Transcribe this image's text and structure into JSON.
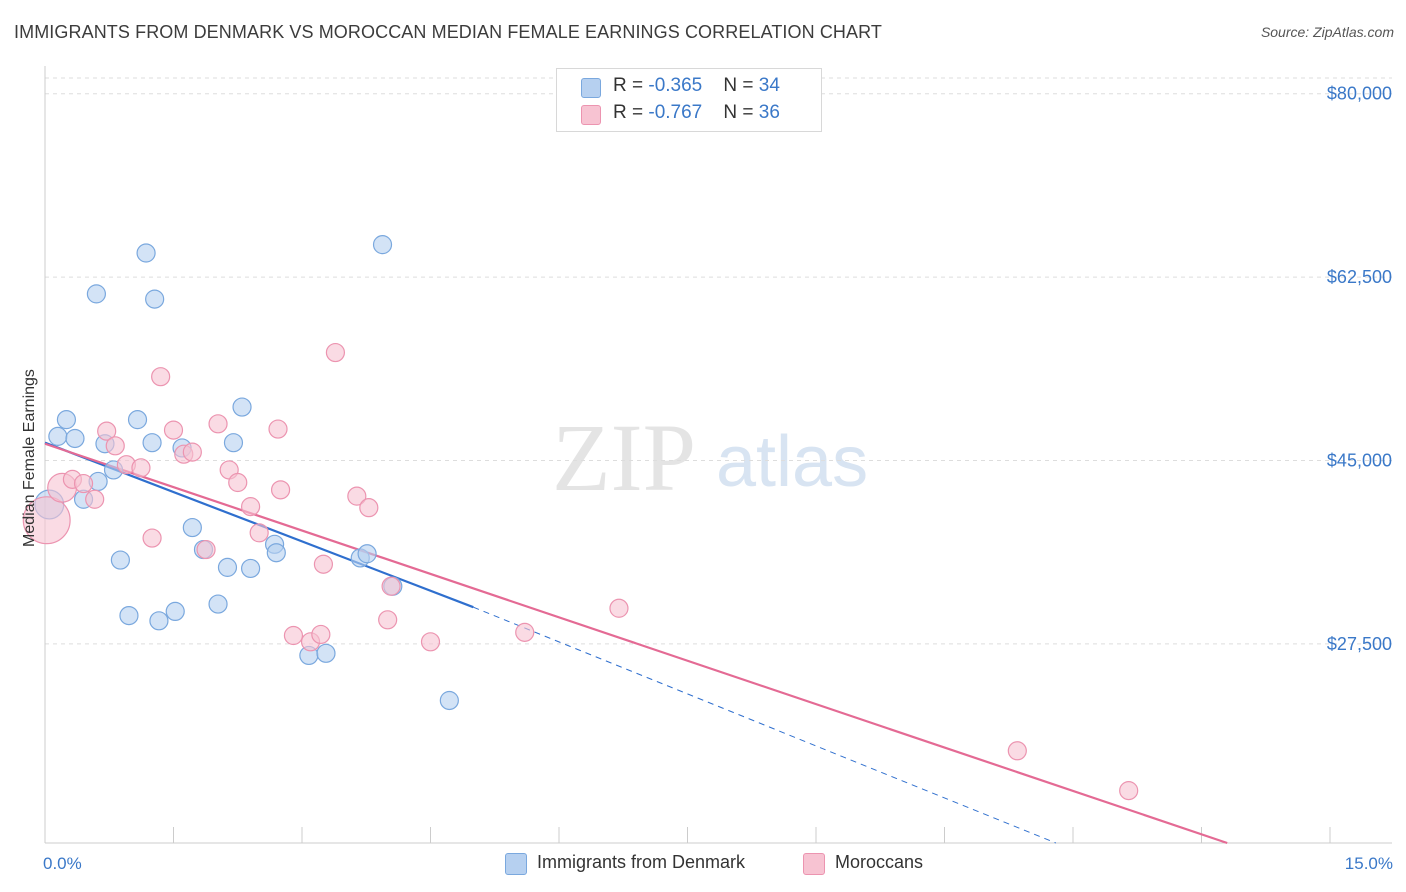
{
  "header": {
    "title": "IMMIGRANTS FROM DENMARK VS MOROCCAN MEDIAN FEMALE EARNINGS CORRELATION CHART",
    "source": "Source: ZipAtlas.com"
  },
  "legend": {
    "rows": [
      {
        "r_label": "R = ",
        "r_value": "-0.365",
        "n_label": "N = ",
        "n_value": "34"
      },
      {
        "r_label": "R = ",
        "r_value": "-0.767",
        "n_label": "N = ",
        "n_value": "36"
      }
    ]
  },
  "bottom_legend": {
    "series1": "Immigrants from Denmark",
    "series2": "Moroccans"
  },
  "watermark": {
    "zip": "ZIP",
    "atlas": "atlas"
  },
  "colors": {
    "blue_fill": "#b6d0f0",
    "blue_stroke": "#7aa8de",
    "blue_line": "#2f6fce",
    "pink_fill": "#f7c3d2",
    "pink_stroke": "#ec94b0",
    "pink_line": "#e46a94",
    "grid": "#dddddd",
    "accent_text": "#3a78c8"
  },
  "chart_data": {
    "type": "scatter",
    "title": "IMMIGRANTS FROM DENMARK VS MOROCCAN MEDIAN FEMALE EARNINGS CORRELATION CHART",
    "xlabel": "",
    "ylabel": "Median Female Earnings",
    "xlim": [
      0,
      15
    ],
    "ylim": [
      8500,
      81500
    ],
    "x_tick_labels": [
      "0.0%",
      "15.0%"
    ],
    "y_ticks": [
      27500,
      45000,
      62500,
      80000
    ],
    "y_tick_labels": [
      "$27,500",
      "$45,000",
      "$62,500",
      "$80,000"
    ],
    "grid": true,
    "legend_placement": "top-center",
    "series": [
      {
        "name": "Immigrants from Denmark",
        "r": -0.365,
        "n": 34,
        "points": [
          [
            0.05,
            40800,
            1.6
          ],
          [
            0.15,
            47300,
            1
          ],
          [
            0.25,
            48900,
            1
          ],
          [
            0.35,
            47100,
            1
          ],
          [
            0.45,
            41300,
            1
          ],
          [
            0.6,
            60900,
            1
          ],
          [
            0.62,
            43000,
            1
          ],
          [
            0.7,
            46600,
            1
          ],
          [
            0.8,
            44100,
            1
          ],
          [
            0.88,
            35500,
            1
          ],
          [
            0.98,
            30200,
            1
          ],
          [
            1.08,
            48900,
            1
          ],
          [
            1.18,
            64800,
            1
          ],
          [
            1.25,
            46700,
            1
          ],
          [
            1.28,
            60400,
            1
          ],
          [
            1.33,
            29700,
            1
          ],
          [
            1.52,
            30600,
            1
          ],
          [
            1.6,
            46200,
            1
          ],
          [
            1.72,
            38600,
            1
          ],
          [
            1.85,
            36500,
            1
          ],
          [
            2.02,
            31300,
            1
          ],
          [
            2.13,
            34800,
            1
          ],
          [
            2.2,
            46700,
            1
          ],
          [
            2.3,
            50100,
            1
          ],
          [
            2.4,
            34700,
            1
          ],
          [
            2.68,
            37000,
            1
          ],
          [
            2.7,
            36200,
            1
          ],
          [
            3.08,
            26400,
            1
          ],
          [
            3.28,
            26600,
            1
          ],
          [
            3.68,
            35700,
            1
          ],
          [
            3.76,
            36100,
            1
          ],
          [
            3.94,
            65600,
            1
          ],
          [
            4.06,
            33000,
            1
          ],
          [
            4.72,
            22100,
            1
          ]
        ],
        "trend": {
          "x": [
            0,
            5.0
          ],
          "y": [
            46700,
            31000
          ]
        },
        "trend_dashed": {
          "x": [
            5.0,
            11.8
          ],
          "y": [
            31000,
            8500
          ]
        }
      },
      {
        "name": "Moroccans",
        "r": -0.767,
        "n": 36,
        "points": [
          [
            0.02,
            39300,
            2.6
          ],
          [
            0.2,
            42400,
            1.6
          ],
          [
            0.32,
            43200,
            1
          ],
          [
            0.45,
            42800,
            1
          ],
          [
            0.58,
            41300,
            1
          ],
          [
            0.72,
            47800,
            1
          ],
          [
            0.82,
            46400,
            1
          ],
          [
            0.95,
            44600,
            1
          ],
          [
            1.12,
            44300,
            1
          ],
          [
            1.25,
            37600,
            1
          ],
          [
            1.35,
            53000,
            1
          ],
          [
            1.5,
            47900,
            1
          ],
          [
            1.62,
            45600,
            1
          ],
          [
            1.72,
            45800,
            1
          ],
          [
            1.88,
            36500,
            1
          ],
          [
            2.02,
            48500,
            1
          ],
          [
            2.15,
            44100,
            1
          ],
          [
            2.25,
            42900,
            1
          ],
          [
            2.4,
            40600,
            1
          ],
          [
            2.5,
            38100,
            1
          ],
          [
            2.72,
            48000,
            1
          ],
          [
            2.75,
            42200,
            1
          ],
          [
            2.9,
            28300,
            1
          ],
          [
            3.1,
            27700,
            1
          ],
          [
            3.22,
            28400,
            1
          ],
          [
            3.25,
            35100,
            1
          ],
          [
            3.39,
            55300,
            1
          ],
          [
            3.64,
            41600,
            1
          ],
          [
            3.78,
            40500,
            1
          ],
          [
            4.0,
            29800,
            1
          ],
          [
            4.04,
            33000,
            1
          ],
          [
            4.5,
            27700,
            1
          ],
          [
            5.6,
            28600,
            1
          ],
          [
            6.7,
            30900,
            1
          ],
          [
            11.35,
            17300,
            1
          ],
          [
            12.65,
            13500,
            1
          ]
        ],
        "trend": {
          "x": [
            0,
            13.8
          ],
          "y": [
            46600,
            8500
          ]
        }
      }
    ]
  }
}
